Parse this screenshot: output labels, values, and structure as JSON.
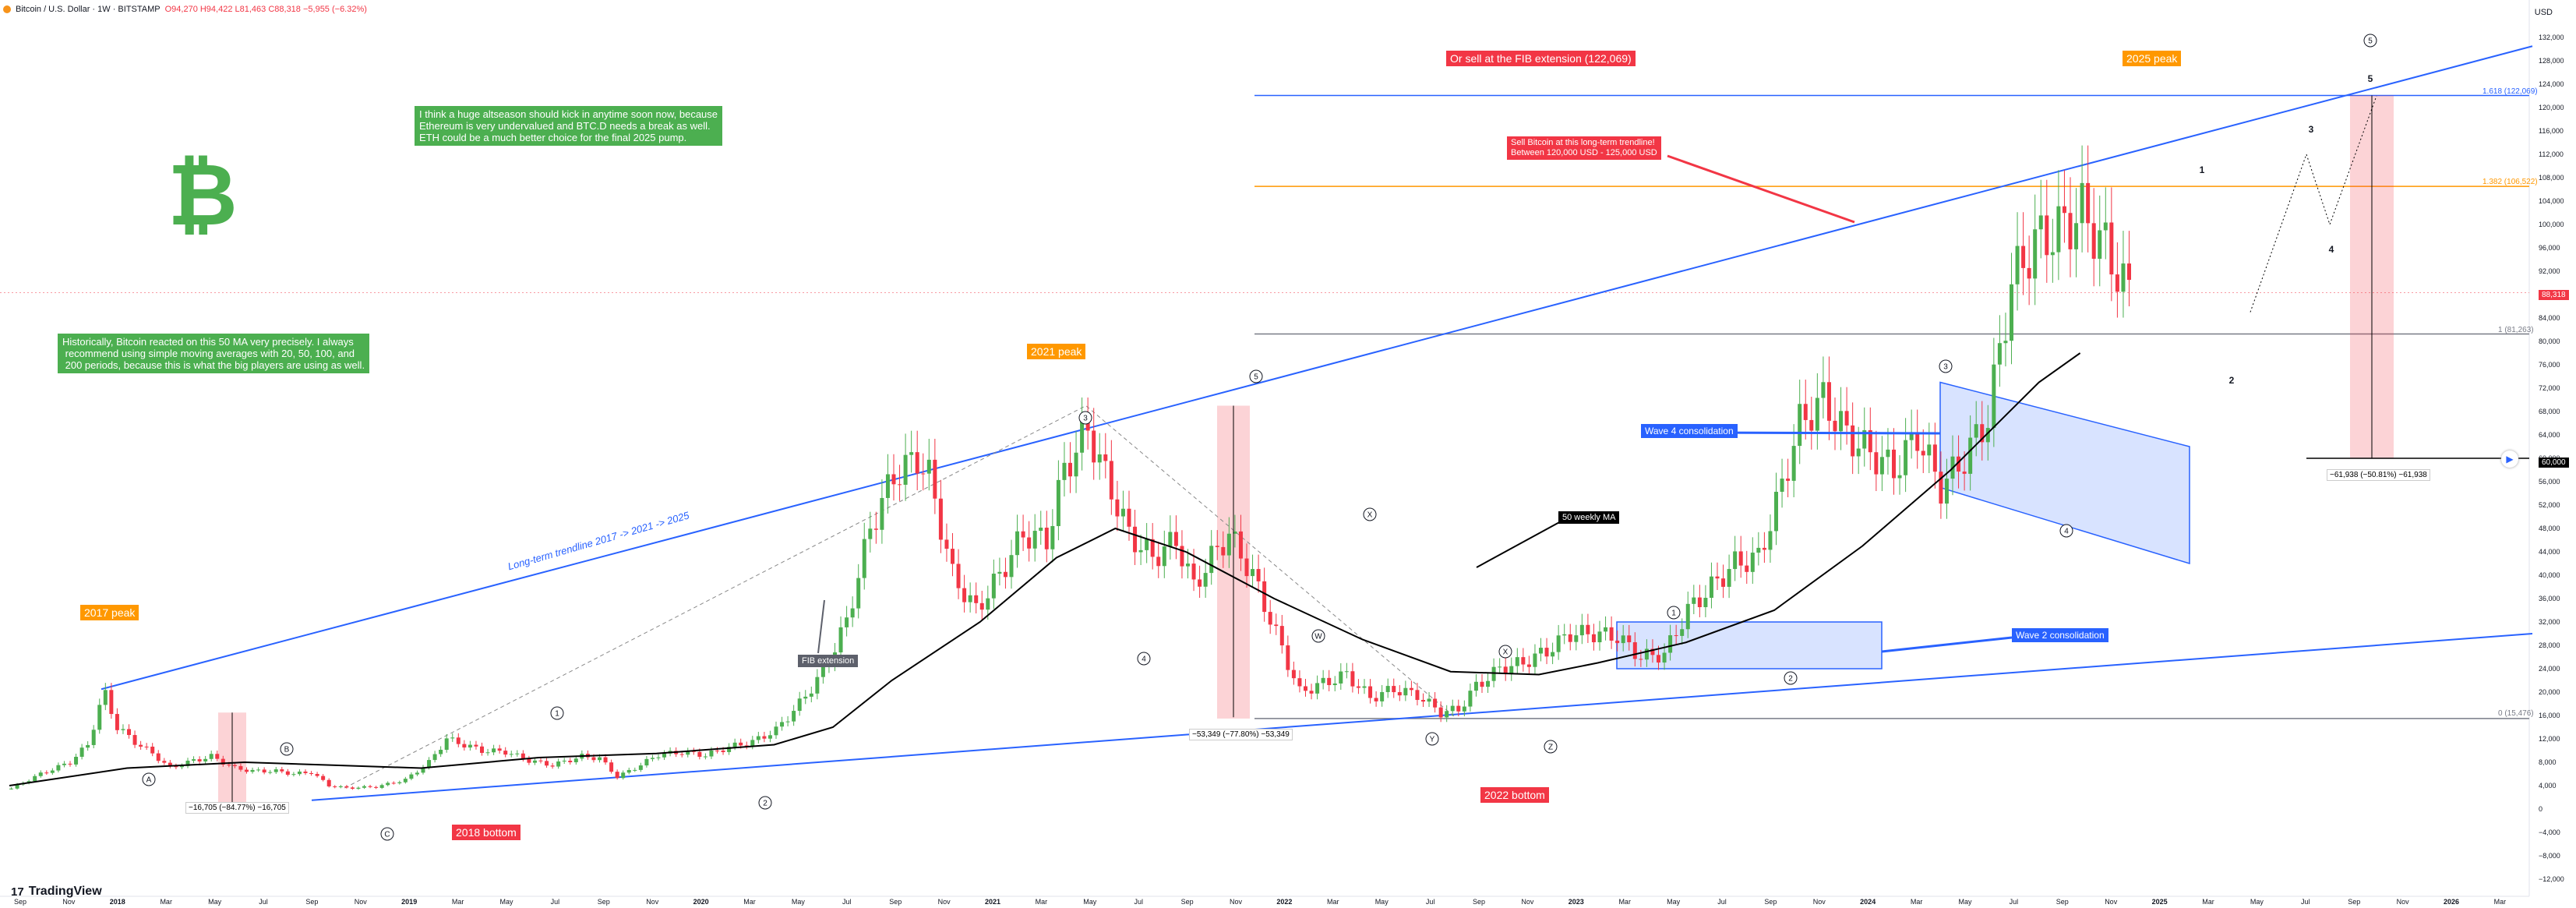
{
  "header": {
    "symbol": "Bitcoin / U.S. Dollar · 1W · BITSTAMP",
    "ohlc": "O94,270 H94,422 L81,463 C88,318 −5,955 (−6.32%)",
    "currency": "USD"
  },
  "brand": "TradingView",
  "colors": {
    "up": "#4caf50",
    "down": "#f23645",
    "trend": "#2962ff",
    "fib1618": "#2962ff",
    "fib1382": "#ff9800",
    "fib1": "#787b86",
    "fib0": "#787b86",
    "ma": "#000000",
    "pink": "rgba(242,54,69,0.22)"
  },
  "labels": {
    "peak2017": "2017 peak",
    "peak2021": "2021 peak",
    "peak2025": "2025 peak",
    "bottom2018": "2018 bottom",
    "bottom2022": "2022 bottom",
    "sell_fib": "Or sell at the FIB extension (122,069)",
    "sell_trend": "Sell Bitcoin at this long-term trendline!\nBetween 120,000 USD - 125,000 USD",
    "altseason": "I think a huge altseason should kick in anytime soon now, because\nEthereum is very undervalued and BTC.D needs a break as well.\nETH could be a much better choice for the final 2025 pump.",
    "ma_note": "Historically, Bitcoin reacted on this 50 MA very precisely. I always\n recommend using simple moving averages with 20, 50, 100, and\n 200 periods, because this is what the big players are using as well.",
    "fib_extension": "FIB extension",
    "ma50": "50 weekly MA",
    "wave4": "Wave 4 consolidation",
    "wave2": "Wave 2 consolidation",
    "trendline": "Long-term trendline 2017 -> 2021 -> 2025",
    "meas1": "−16,705 (−84.77%) −16,705",
    "meas2": "−53,349 (−77.80%) −53,349",
    "meas3": "−61,938 (−50.81%) −61,938",
    "fib_1618": "1.618 (122,069)",
    "fib_1382": "1.382 (106,522)",
    "fib_1": "1 (81,263)",
    "fib_0": "0 (15,476)",
    "price_current": "88,318",
    "price_target": "60,000"
  },
  "waves": {
    "A": "A",
    "B": "B",
    "C": "C",
    "W": "W",
    "X": "X",
    "Y": "Y",
    "Z": "Z",
    "n1": "1",
    "n2": "2",
    "n3": "3",
    "n4": "4",
    "n5": "5"
  },
  "chart_data": {
    "type": "candlestick",
    "title": "Bitcoin / U.S. Dollar · 1W · BITSTAMP",
    "ylim": [
      -12000,
      134000
    ],
    "y_ticks": [
      132000,
      128000,
      124000,
      120000,
      116000,
      112000,
      108000,
      104000,
      100000,
      96000,
      92000,
      88000,
      84000,
      80000,
      76000,
      72000,
      68000,
      64000,
      60000,
      56000,
      52000,
      48000,
      44000,
      40000,
      36000,
      32000,
      28000,
      24000,
      20000,
      16000,
      12000,
      8000,
      4000,
      0,
      -4000,
      -8000,
      -12000
    ],
    "x_ticks": [
      "Sep",
      "Nov",
      "2018",
      "Mar",
      "May",
      "Jul",
      "Sep",
      "Nov",
      "2019",
      "Mar",
      "May",
      "Jul",
      "Sep",
      "Nov",
      "2020",
      "Mar",
      "May",
      "Jul",
      "Sep",
      "Nov",
      "2021",
      "Mar",
      "May",
      "Jul",
      "Sep",
      "Nov",
      "2022",
      "Mar",
      "May",
      "Jul",
      "Sep",
      "Nov",
      "2023",
      "Mar",
      "May",
      "Jul",
      "Sep",
      "Nov",
      "2024",
      "Mar",
      "May",
      "Jul",
      "Sep",
      "Nov",
      "2025",
      "Mar",
      "May",
      "Jul",
      "Sep",
      "Nov",
      "2026",
      "Mar"
    ],
    "price_anchors": [
      [
        0,
        3500
      ],
      [
        5,
        6000
      ],
      [
        10,
        8000
      ],
      [
        13,
        11000
      ],
      [
        15,
        17500
      ],
      [
        16,
        19500
      ],
      [
        18,
        14000
      ],
      [
        21,
        11500
      ],
      [
        24,
        9500
      ],
      [
        27,
        7000
      ],
      [
        30,
        8000
      ],
      [
        34,
        9000
      ],
      [
        38,
        7000
      ],
      [
        41,
        6500
      ],
      [
        45,
        6500
      ],
      [
        48,
        6000
      ],
      [
        51,
        6300
      ],
      [
        54,
        4000
      ],
      [
        57,
        3600
      ],
      [
        62,
        3800
      ],
      [
        67,
        5000
      ],
      [
        71,
        8000
      ],
      [
        74,
        12000
      ],
      [
        77,
        11000
      ],
      [
        80,
        10000
      ],
      [
        84,
        9800
      ],
      [
        88,
        8300
      ],
      [
        92,
        7500
      ],
      [
        97,
        9000
      ],
      [
        100,
        8700
      ],
      [
        103,
        5500
      ],
      [
        106,
        7000
      ],
      [
        110,
        9300
      ],
      [
        114,
        9700
      ],
      [
        118,
        9200
      ],
      [
        122,
        10600
      ],
      [
        126,
        11500
      ],
      [
        130,
        13500
      ],
      [
        134,
        18000
      ],
      [
        138,
        23500
      ],
      [
        142,
        32000
      ],
      [
        146,
        48000
      ],
      [
        150,
        57000
      ],
      [
        154,
        60000
      ],
      [
        156,
        57000
      ],
      [
        160,
        40000
      ],
      [
        164,
        34000
      ],
      [
        168,
        40000
      ],
      [
        172,
        47000
      ],
      [
        176,
        46000
      ],
      [
        179,
        58000
      ],
      [
        183,
        65000
      ],
      [
        186,
        57000
      ],
      [
        190,
        47000
      ],
      [
        194,
        43000
      ],
      [
        198,
        46000
      ],
      [
        201,
        38000
      ],
      [
        204,
        43000
      ],
      [
        207,
        47000
      ],
      [
        211,
        40000
      ],
      [
        215,
        30000
      ],
      [
        219,
        20000
      ],
      [
        223,
        21500
      ],
      [
        227,
        23000
      ],
      [
        231,
        19000
      ],
      [
        235,
        20500
      ],
      [
        239,
        19500
      ],
      [
        243,
        16500
      ],
      [
        246,
        17000
      ],
      [
        249,
        21000
      ],
      [
        253,
        24000
      ],
      [
        257,
        25000
      ],
      [
        261,
        27000
      ],
      [
        265,
        30000
      ],
      [
        269,
        30000
      ],
      [
        273,
        29500
      ],
      [
        277,
        26000
      ],
      [
        281,
        26500
      ],
      [
        285,
        34000
      ],
      [
        289,
        38000
      ],
      [
        293,
        42000
      ],
      [
        297,
        43000
      ],
      [
        300,
        52000
      ],
      [
        304,
        66000
      ],
      [
        308,
        70000
      ],
      [
        312,
        64000
      ],
      [
        316,
        61000
      ],
      [
        320,
        58000
      ],
      [
        324,
        64000
      ],
      [
        328,
        55000
      ],
      [
        332,
        60000
      ],
      [
        336,
        67000
      ],
      [
        340,
        90000
      ],
      [
        344,
        97000
      ],
      [
        348,
        99000
      ],
      [
        352,
        102000
      ],
      [
        356,
        96000
      ],
      [
        360,
        88000
      ]
    ],
    "ma50_anchors": [
      [
        0,
        4000
      ],
      [
        20,
        7000
      ],
      [
        40,
        8000
      ],
      [
        55,
        7500
      ],
      [
        70,
        7000
      ],
      [
        90,
        8800
      ],
      [
        110,
        9500
      ],
      [
        130,
        11000
      ],
      [
        140,
        14000
      ],
      [
        150,
        22000
      ],
      [
        165,
        32000
      ],
      [
        178,
        43000
      ],
      [
        188,
        48000
      ],
      [
        200,
        44000
      ],
      [
        215,
        36000
      ],
      [
        230,
        29000
      ],
      [
        245,
        23500
      ],
      [
        260,
        23000
      ],
      [
        270,
        25000
      ],
      [
        285,
        28500
      ],
      [
        300,
        34000
      ],
      [
        315,
        45000
      ],
      [
        330,
        58000
      ],
      [
        345,
        73000
      ],
      [
        352,
        78000
      ]
    ],
    "annotations": [
      "2017 peak",
      "2018 bottom",
      "2021 peak",
      "2022 bottom",
      "2025 peak",
      "50 weekly MA",
      "FIB extension",
      "Wave 2 consolidation",
      "Wave 4 consolidation"
    ]
  }
}
